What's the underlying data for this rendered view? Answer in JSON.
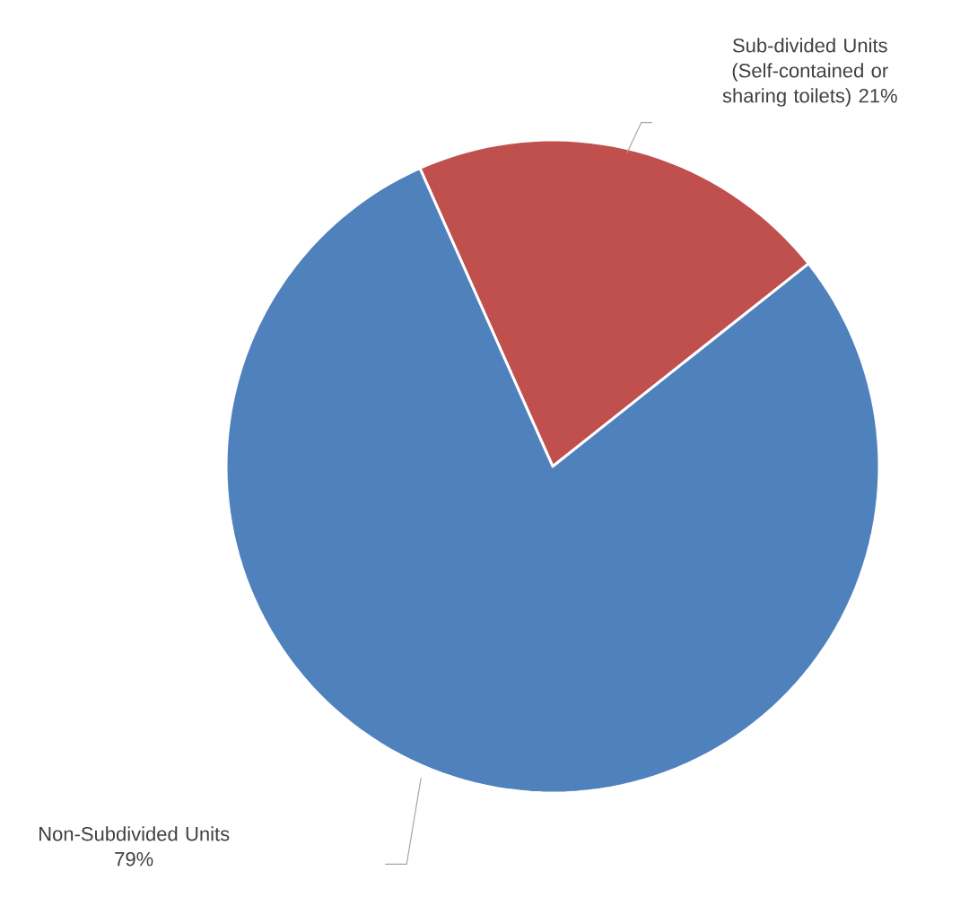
{
  "chart_data": {
    "type": "pie",
    "categories": [
      "Sub-divided Units (Self-contained or sharing toilets)",
      "Non-Subdivided Units"
    ],
    "values": [
      21,
      79
    ],
    "colors": [
      "#c0504d",
      "#4f81bd"
    ],
    "value_labels": [
      "21%",
      "79%"
    ]
  }
}
